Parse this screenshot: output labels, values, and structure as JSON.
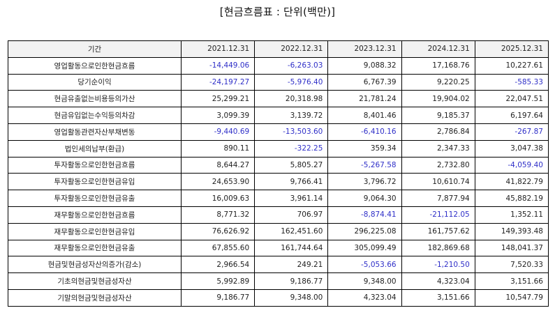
{
  "title": "[현금흐름표 : 단위(백만)]",
  "colors": {
    "negative": "#2f2fc8",
    "positive": "#222222",
    "header_bg": "#f2f2f2",
    "border": "#000000"
  },
  "table": {
    "header": {
      "period_label": "기간",
      "years": [
        "2021.12.31",
        "2022.12.31",
        "2023.12.31",
        "2024.12.31",
        "2025.12.31"
      ]
    },
    "rows": [
      {
        "label": "영업활동으로인한현금흐름",
        "values": [
          "-14,449.06",
          "-6,263.03",
          "9,088.32",
          "17,168.76",
          "10,227.61"
        ]
      },
      {
        "label": "당기순이익",
        "values": [
          "-24,197.27",
          "-5,976.40",
          "6,767.39",
          "9,220.25",
          "-585.33"
        ]
      },
      {
        "label": "현금유출없는비용등의가산",
        "values": [
          "25,299.21",
          "20,318.98",
          "21,781.24",
          "19,904.02",
          "22,047.51"
        ]
      },
      {
        "label": "현금유입없는수익등의차감",
        "values": [
          "3,099.39",
          "3,139.72",
          "8,401.46",
          "9,185.37",
          "6,197.64"
        ]
      },
      {
        "label": "영업활동관련자산부채변동",
        "values": [
          "-9,440.69",
          "-13,503.60",
          "-6,410.16",
          "2,786.84",
          "-267.87"
        ]
      },
      {
        "label": "법인세의납부(환급)",
        "values": [
          "890.11",
          "-322.25",
          "359.34",
          "2,347.33",
          "3,047.38"
        ]
      },
      {
        "label": "투자활동으로인한현금흐름",
        "values": [
          "8,644.27",
          "5,805.27",
          "-5,267.58",
          "2,732.80",
          "-4,059.40"
        ]
      },
      {
        "label": "투자활동으로인한현금유입",
        "values": [
          "24,653.90",
          "9,766.41",
          "3,796.72",
          "10,610.74",
          "41,822.79"
        ]
      },
      {
        "label": "투자활동으로인한현금유출",
        "values": [
          "16,009.63",
          "3,961.14",
          "9,064.30",
          "7,877.94",
          "45,882.19"
        ]
      },
      {
        "label": "재무활동으로인한현금흐름",
        "values": [
          "8,771.32",
          "706.97",
          "-8,874.41",
          "-21,112.05",
          "1,352.11"
        ]
      },
      {
        "label": "재무활동으로인한현금유입",
        "values": [
          "76,626.92",
          "162,451.60",
          "296,225.08",
          "161,757.62",
          "149,393.48"
        ]
      },
      {
        "label": "재무활동으로인한현금유출",
        "values": [
          "67,855.60",
          "161,744.64",
          "305,099.49",
          "182,869.68",
          "148,041.37"
        ]
      },
      {
        "label": "현금및현금성자산의증가(감소)",
        "values": [
          "2,966.54",
          "249.21",
          "-5,053.66",
          "-1,210.50",
          "7,520.33"
        ]
      },
      {
        "label": "기초의현금및현금성자산",
        "values": [
          "5,992.89",
          "9,186.77",
          "9,348.00",
          "4,323.04",
          "3,151.66"
        ]
      },
      {
        "label": "기말의현금및현금성자산",
        "values": [
          "9,186.77",
          "9,348.00",
          "4,323.04",
          "3,151.66",
          "10,547.79"
        ]
      }
    ]
  }
}
